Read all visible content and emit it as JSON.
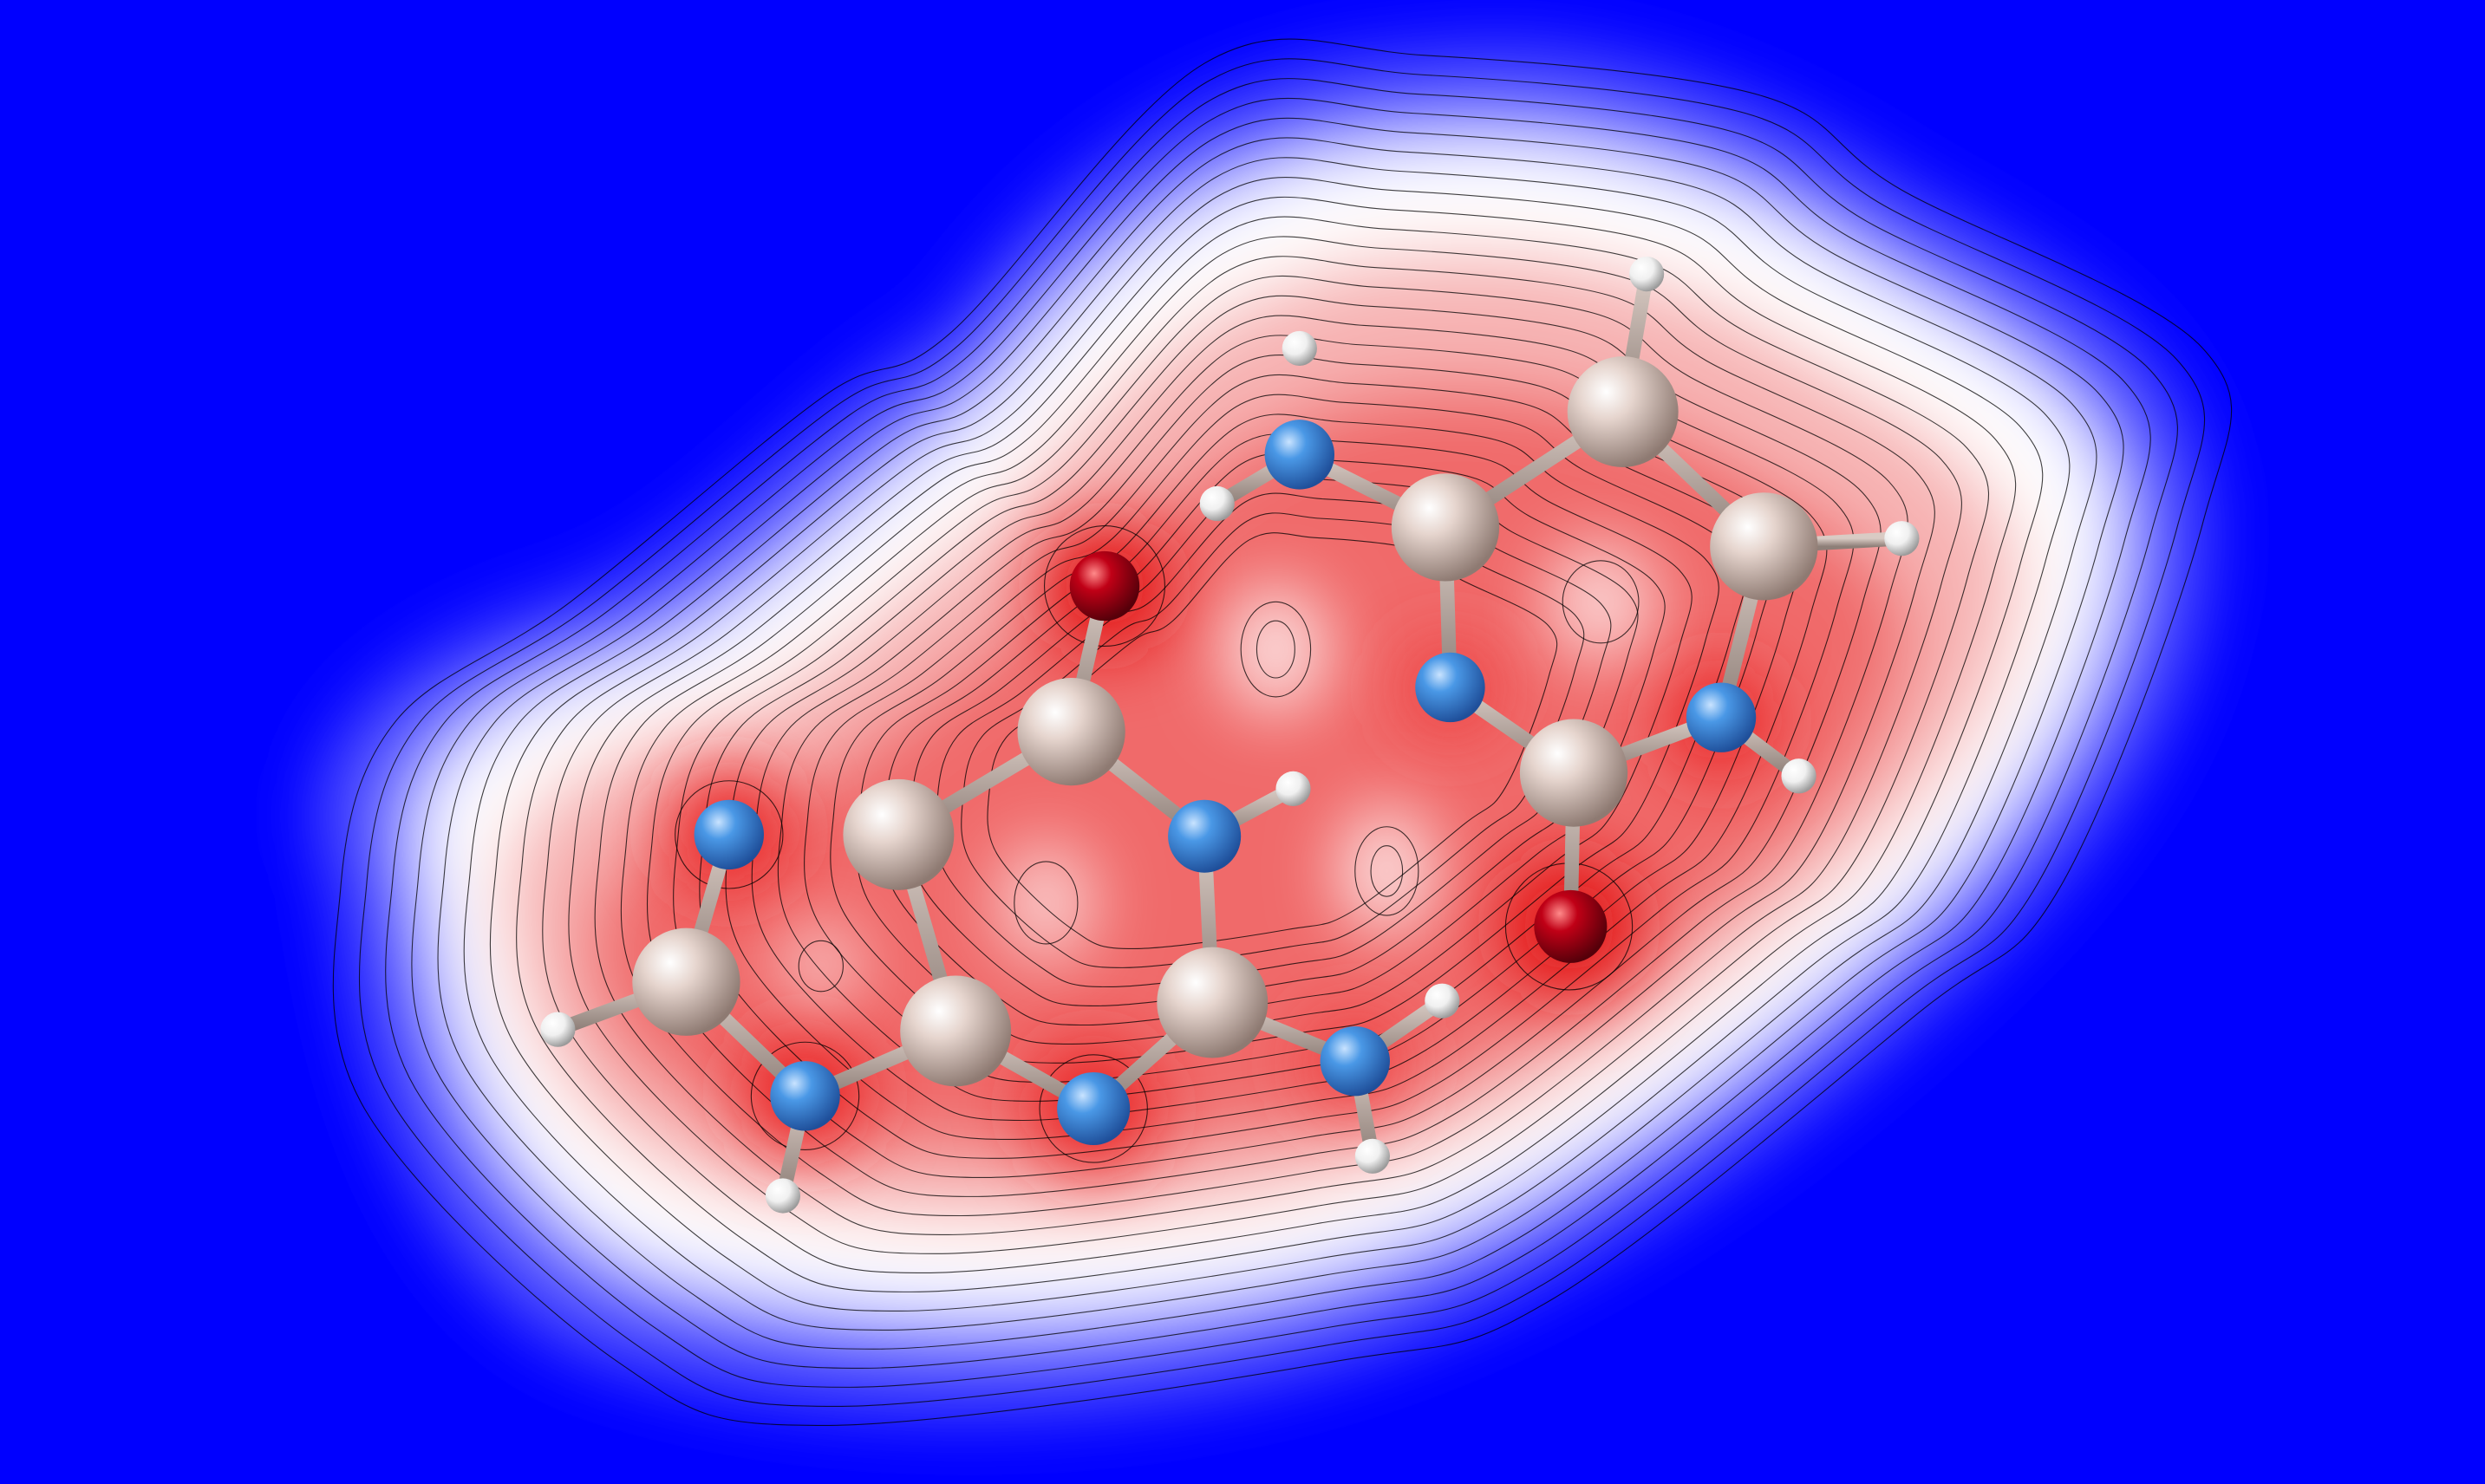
{
  "scene": {
    "background_color": "#0000ff",
    "map_colors": {
      "low": "#0000ff",
      "mid": "#ffffff",
      "high": "#e81010"
    },
    "atom_colors": {
      "carbon": "#d8c2b8",
      "nitrogen": "#3f8fe0",
      "oxygen": "#b00010",
      "hydrogen": "#f2f2f2"
    },
    "contour_line_color": "#000000"
  }
}
